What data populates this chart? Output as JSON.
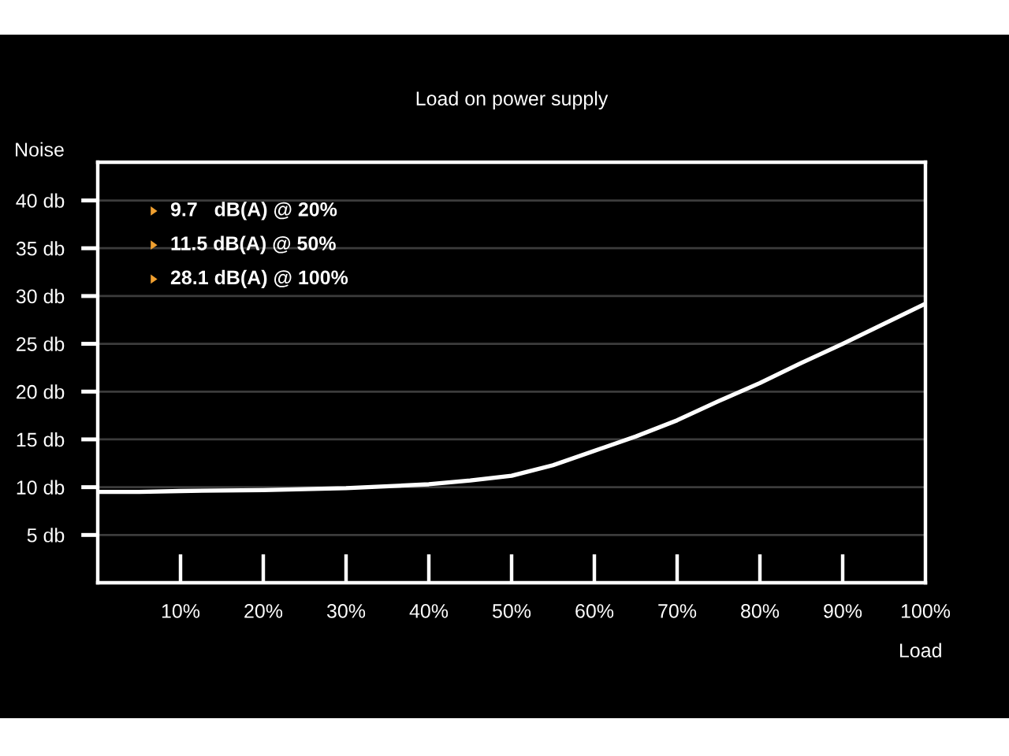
{
  "chart_data": {
    "type": "line",
    "title": "Load on power supply",
    "xlabel": "Load",
    "ylabel": "Noise",
    "x": [
      0,
      5,
      10,
      20,
      30,
      40,
      45,
      50,
      55,
      60,
      65,
      70,
      75,
      80,
      85,
      90,
      95,
      100
    ],
    "series": [
      {
        "color": "#ffffff",
        "values": [
          9.5,
          9.5,
          9.6,
          9.7,
          9.9,
          10.3,
          10.7,
          11.2,
          12.3,
          13.8,
          15.3,
          17.0,
          19.0,
          20.9,
          23.0,
          25.0,
          27.1,
          29.2
        ]
      }
    ],
    "xlim": [
      0,
      100
    ],
    "xticks": [
      {
        "value": 10,
        "label": "10%"
      },
      {
        "value": 20,
        "label": "20%"
      },
      {
        "value": 30,
        "label": "30%"
      },
      {
        "value": 40,
        "label": "40%"
      },
      {
        "value": 50,
        "label": "50%"
      },
      {
        "value": 60,
        "label": "60%"
      },
      {
        "value": 70,
        "label": "70%"
      },
      {
        "value": 80,
        "label": "80%"
      },
      {
        "value": 90,
        "label": "90%"
      },
      {
        "value": 100,
        "label": "100%"
      }
    ],
    "ylim": [
      0,
      44
    ],
    "yticks": [
      {
        "value": 5,
        "label": "5 db"
      },
      {
        "value": 10,
        "label": "10 db"
      },
      {
        "value": 15,
        "label": "15 db"
      },
      {
        "value": 20,
        "label": "20 db"
      },
      {
        "value": 25,
        "label": "25 db"
      },
      {
        "value": 30,
        "label": "30 db"
      },
      {
        "value": 35,
        "label": "35 db"
      },
      {
        "value": 40,
        "label": "40 db"
      }
    ],
    "grid": "y",
    "annotations": [
      "9.7   dB(A) @ 20%",
      "11.5 dB(A) @ 50%",
      "28.1 dB(A) @ 100%"
    ]
  }
}
